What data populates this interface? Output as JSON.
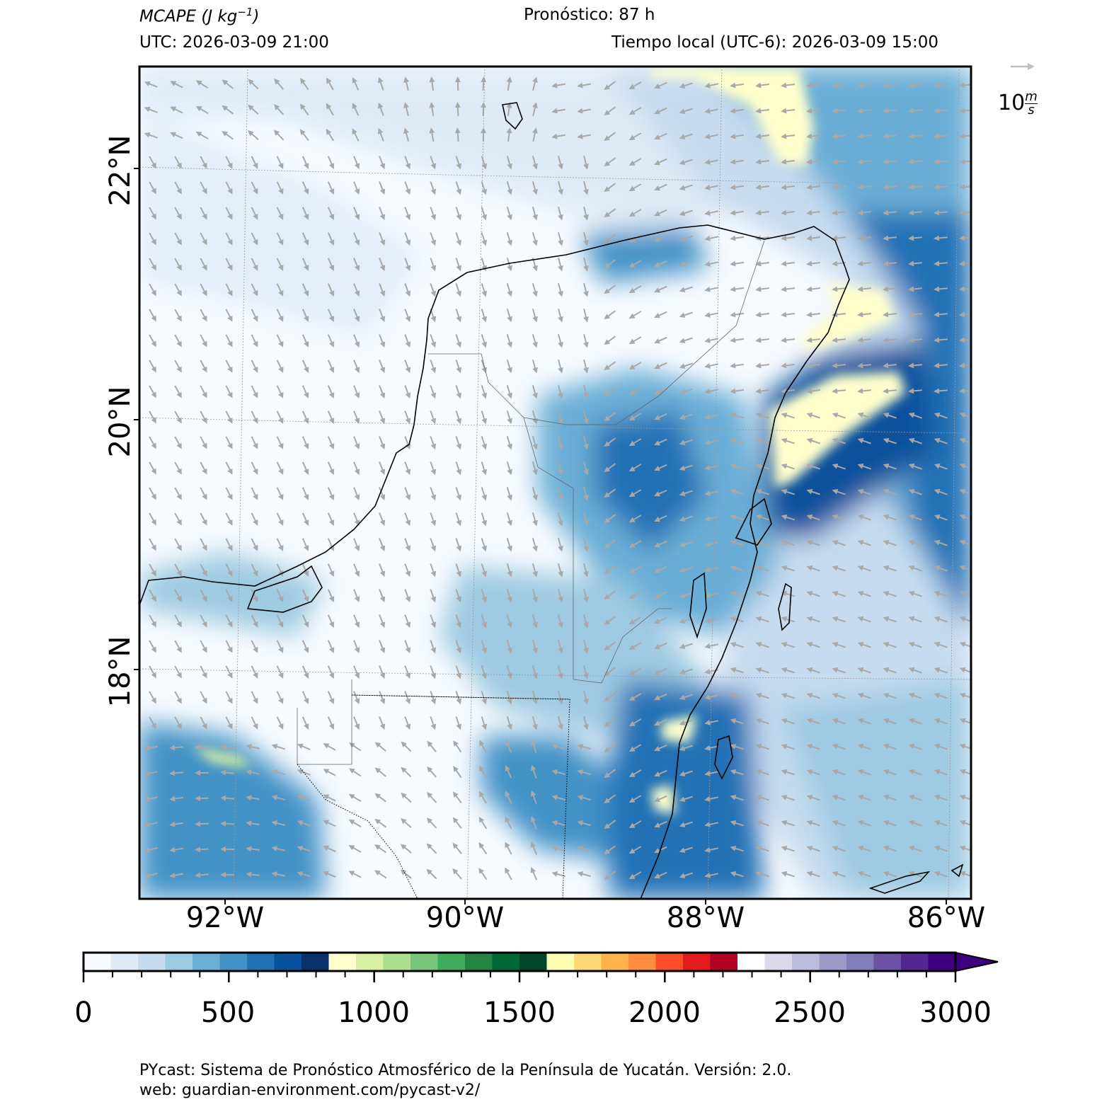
{
  "header": {
    "variable": "MCAPE (J kg",
    "variable_exp": "−1",
    "variable_close": ")",
    "forecast": "Pronóstico: 87 h",
    "utc": "UTC:  2026-03-09 21:00",
    "local": "Tiempo local (UTC-6): 2026-03-09 15:00"
  },
  "map": {
    "lat_labels": [
      "22°N",
      "20°N",
      "18°N"
    ],
    "lon_labels": [
      "92°W",
      "90°W",
      "88°W",
      "86°W"
    ],
    "wind_reference": "10",
    "wind_reference_num": "m",
    "wind_reference_den": "s",
    "colors": {
      "arrow": "#a8a8a8",
      "coast": "#000000",
      "land_fill": "#f7fbff"
    }
  },
  "colorbar": {
    "ticks": [
      "0",
      "500",
      "1000",
      "1500",
      "2000",
      "2500",
      "3000"
    ],
    "colors": [
      "#f7fbff",
      "#deebf7",
      "#c6dbef",
      "#9ecae1",
      "#6baed6",
      "#4292c6",
      "#2171b5",
      "#08519c",
      "#08306b",
      "#ffffcc",
      "#d9f0a3",
      "#addd8e",
      "#78c679",
      "#41ab5d",
      "#238443",
      "#006837",
      "#004529",
      "#ffffb2",
      "#fed976",
      "#feb24c",
      "#fd8d3c",
      "#fc4e2a",
      "#e31a1c",
      "#b10026",
      "#ffffff",
      "#dadaeb",
      "#bcbddc",
      "#9e9ac8",
      "#807dba",
      "#6a51a3",
      "#54278f",
      "#3f007d"
    ]
  },
  "footer": {
    "line1": "PYcast: Sistema de Pronóstico Atmosférico de la Península de Yucatán. Versión: 2.0.",
    "line2": "web: guardian-environment.com/pycast-v2/"
  }
}
